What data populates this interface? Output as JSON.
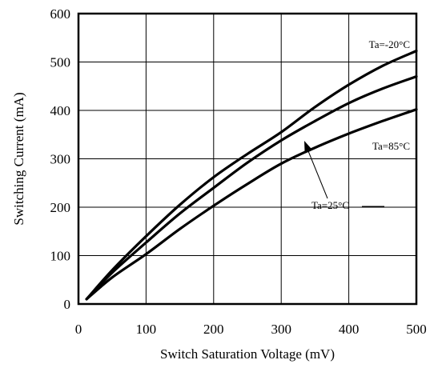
{
  "chart_data": {
    "type": "line",
    "title": "",
    "xlabel": "Switch Saturation Voltage (mV)",
    "ylabel": "Switching Current (mA)",
    "xlim": [
      0,
      500
    ],
    "ylim": [
      0,
      600
    ],
    "xticks": [
      "0",
      "100",
      "200",
      "300",
      "400",
      "500"
    ],
    "yticks": [
      "0",
      "100",
      "200",
      "300",
      "400",
      "500",
      "600"
    ],
    "grid": true,
    "line_color": "#000000",
    "series": [
      {
        "name": "Ta=-20°C",
        "x": [
          12,
          50,
          100,
          150,
          200,
          250,
          300,
          350,
          400,
          450,
          500
        ],
        "y": [
          10,
          70,
          140,
          205,
          262,
          310,
          355,
          407,
          453,
          492,
          523
        ]
      },
      {
        "name": "Ta=25°C",
        "x": [
          12,
          50,
          100,
          150,
          200,
          250,
          300,
          350,
          400,
          450,
          500
        ],
        "y": [
          10,
          65,
          127,
          187,
          240,
          292,
          338,
          378,
          415,
          445,
          470
        ]
      },
      {
        "name": "Ta=85°C",
        "x": [
          12,
          50,
          100,
          150,
          200,
          250,
          300,
          350,
          400,
          450,
          500
        ],
        "y": [
          10,
          55,
          103,
          155,
          203,
          248,
          290,
          323,
          352,
          378,
          402
        ]
      }
    ],
    "annotations": [
      {
        "text": "Ta=-20°C",
        "series": 0
      },
      {
        "text": "Ta=85°C",
        "series": 2
      },
      {
        "text": "Ta=25°C",
        "series": 1,
        "arrow": true
      }
    ]
  }
}
